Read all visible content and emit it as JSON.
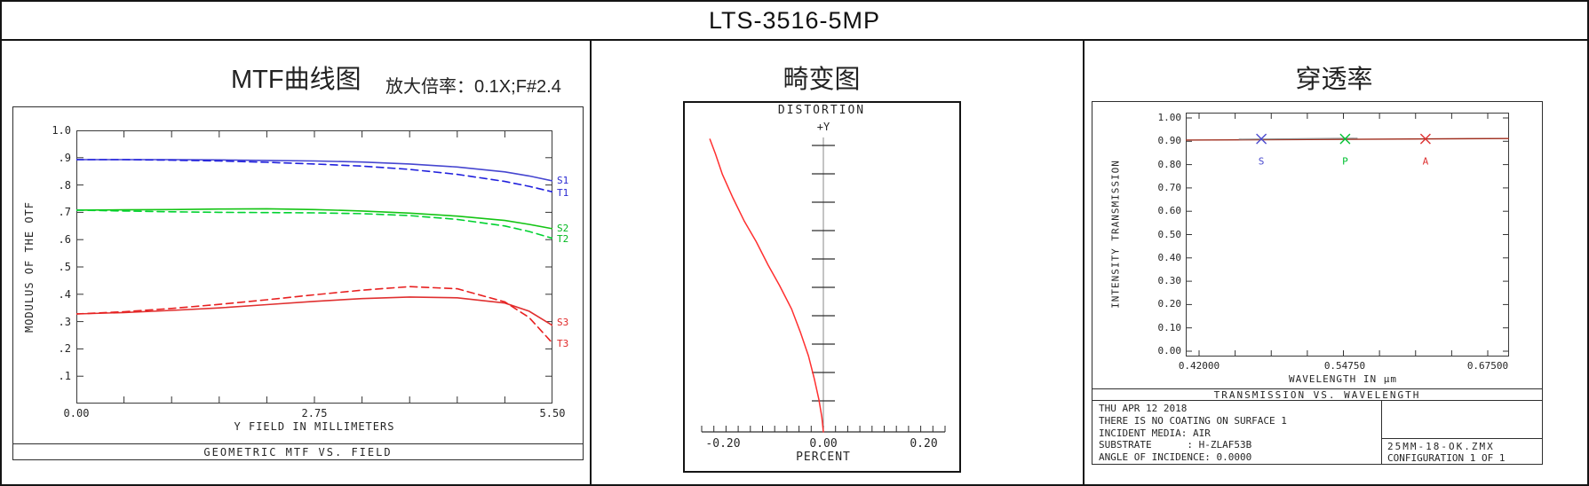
{
  "window": {
    "title": "LTS-3516-5MP"
  },
  "panels": {
    "mtf": {
      "title": "MTF曲线图",
      "subtitle": "放大倍率：0.1X;F#2.4",
      "banner": "GEOMETRIC MTF VS. FIELD",
      "ylabel": "MODULUS OF THE OTF",
      "xlabel": "Y FIELD IN MILLIMETERS",
      "yticks": [
        "1.0",
        ".9",
        ".8",
        ".7",
        ".6",
        ".5",
        ".4",
        ".3",
        ".2",
        ".1"
      ],
      "xticks": [
        "0.00",
        "2.75",
        "5.50"
      ],
      "series_labels": [
        {
          "text": "S1",
          "color": "#2a2ad2"
        },
        {
          "text": "T1",
          "color": "#2a2ad2"
        },
        {
          "text": "S2",
          "color": "#00b81e"
        },
        {
          "text": "T2",
          "color": "#00b81e"
        },
        {
          "text": "S3",
          "color": "#e02828"
        },
        {
          "text": "T3",
          "color": "#e02828"
        }
      ]
    },
    "distortion": {
      "title": "畸变图",
      "chart_title": "DISTORTION",
      "axis_top_label": "+Y",
      "xticks": [
        "-0.20",
        "0.00",
        "0.20"
      ],
      "xlabel": "PERCENT"
    },
    "transmission": {
      "title": "穿透率",
      "ylabel": "INTENSITY TRANSMISSION",
      "xlabel": "WAVELENGTH IN µm",
      "banner": "TRANSMISSION VS. WAVELENGTH",
      "yticks": [
        "1.00",
        "0.90",
        "0.80",
        "0.70",
        "0.60",
        "0.50",
        "0.40",
        "0.30",
        "0.20",
        "0.10",
        "0.00"
      ],
      "xticks": [
        "0.42000",
        "0.54750",
        "0.67500"
      ],
      "info_lines": [
        "THU APR 12 2018",
        "THERE IS NO COATING ON SURFACE 1",
        "INCIDENT MEDIA: AIR",
        "SUBSTRATE      : H-ZLAF53B",
        "ANGLE OF INCIDENCE: 0.0000"
      ],
      "file_name": "25MM-18-OK.ZMX",
      "config_label": "CONFIGURATION 1 OF 1"
    }
  },
  "chart_data": [
    {
      "type": "line",
      "title": "GEOMETRIC MTF VS. FIELD",
      "xlabel": "Y FIELD IN MILLIMETERS",
      "ylabel": "MODULUS OF THE OTF",
      "xlim": [
        0,
        5.5
      ],
      "ylim": [
        0,
        1.0
      ],
      "grid": false,
      "x": [
        0,
        0.55,
        1.1,
        1.65,
        2.2,
        2.75,
        3.3,
        3.85,
        4.4,
        4.95,
        5.23,
        5.5
      ],
      "series": [
        {
          "name": "S1",
          "color": "#4646d0",
          "style": "solid",
          "values": [
            0.893,
            0.893,
            0.893,
            0.892,
            0.89,
            0.888,
            0.884,
            0.877,
            0.866,
            0.848,
            0.833,
            0.815
          ]
        },
        {
          "name": "T1",
          "color": "#2020dd",
          "style": "dashed",
          "values": [
            0.893,
            0.893,
            0.891,
            0.888,
            0.883,
            0.877,
            0.869,
            0.857,
            0.839,
            0.813,
            0.795,
            0.775
          ]
        },
        {
          "name": "S2",
          "color": "#14c414",
          "style": "solid",
          "values": [
            0.708,
            0.709,
            0.71,
            0.712,
            0.713,
            0.71,
            0.705,
            0.697,
            0.686,
            0.67,
            0.656,
            0.64
          ]
        },
        {
          "name": "T2",
          "color": "#00d230",
          "style": "dashed",
          "values": [
            0.708,
            0.705,
            0.702,
            0.7,
            0.699,
            0.698,
            0.695,
            0.688,
            0.674,
            0.65,
            0.63,
            0.605
          ]
        },
        {
          "name": "S3",
          "color": "#e03030",
          "style": "solid",
          "values": [
            0.328,
            0.333,
            0.341,
            0.35,
            0.362,
            0.374,
            0.384,
            0.39,
            0.387,
            0.368,
            0.338,
            0.286
          ]
        },
        {
          "name": "T3",
          "color": "#e82020",
          "style": "dashed",
          "values": [
            0.328,
            0.336,
            0.348,
            0.363,
            0.38,
            0.398,
            0.415,
            0.428,
            0.42,
            0.372,
            0.315,
            0.221
          ]
        }
      ]
    },
    {
      "type": "line",
      "title": "DISTORTION",
      "xlabel": "PERCENT",
      "xlim": [
        -0.245,
        0.245
      ],
      "field_axis": "vertical, 0 at bottom to max field at top",
      "series": [
        {
          "name": "distortion",
          "color": "#ff3030",
          "points_field_pct": [
            [
              1.0,
              -0.228
            ],
            [
              0.95,
              -0.217
            ],
            [
              0.88,
              -0.203
            ],
            [
              0.8,
              -0.182
            ],
            [
              0.72,
              -0.159
            ],
            [
              0.65,
              -0.135
            ],
            [
              0.57,
              -0.111
            ],
            [
              0.5,
              -0.088
            ],
            [
              0.42,
              -0.064
            ],
            [
              0.34,
              -0.046
            ],
            [
              0.26,
              -0.03
            ],
            [
              0.18,
              -0.018
            ],
            [
              0.11,
              -0.009
            ],
            [
              0.05,
              -0.003
            ],
            [
              0.0,
              0.0
            ]
          ]
        }
      ]
    },
    {
      "type": "line",
      "title": "TRANSMISSION VS. WAVELENGTH",
      "xlabel": "WAVELENGTH IN µm",
      "ylabel": "INTENSITY TRANSMISSION",
      "xlim": [
        0.42,
        0.675
      ],
      "ylim": [
        0.0,
        1.0
      ],
      "series": [
        {
          "name": "transmission",
          "color": "#a03020",
          "x": [
            0.42,
            0.675
          ],
          "values": [
            0.905,
            0.912
          ]
        },
        {
          "name": "transmission-gray-overlap",
          "color": "#909090",
          "x": [
            0.455,
            0.56
          ],
          "values": [
            0.909,
            0.913
          ]
        }
      ],
      "markers": [
        {
          "label": "S",
          "color": "#4a4ace",
          "x": 0.475,
          "y": 0.91
        },
        {
          "label": "P",
          "color": "#00c030",
          "x": 0.549,
          "y": 0.91
        },
        {
          "label": "A",
          "color": "#dd3030",
          "x": 0.62,
          "y": 0.91
        }
      ]
    }
  ]
}
